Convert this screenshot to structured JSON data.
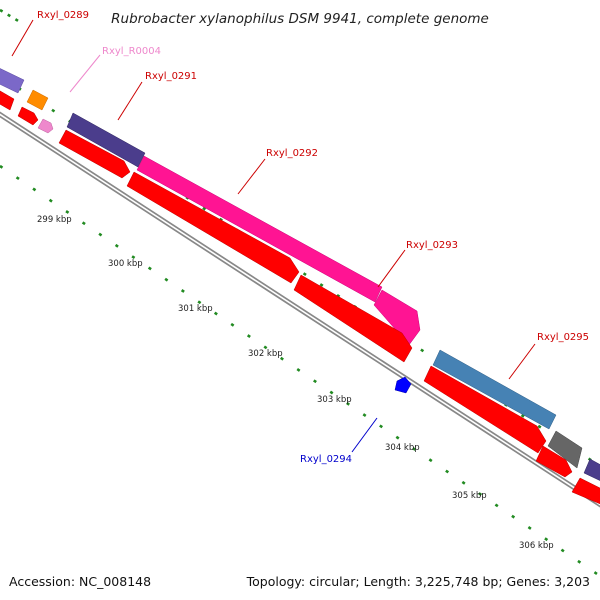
{
  "title": "Rubrobacter xylanophilus DSM 9941, complete genome",
  "footer": {
    "accession": "Accession: NC_008148",
    "summary": "Topology: circular; Length: 3,225,748 bp; Genes: 3,203"
  },
  "colors": {
    "cds_red": "#ff0000",
    "purple": "#7b68c8",
    "orange": "#ff8c00",
    "pink": "#ee88cc",
    "dark_purple": "#4b3d8c",
    "magenta": "#ff1493",
    "steelblue": "#4682b4",
    "gray": "#666666",
    "blue": "#0000ff",
    "tick_green": "#228b22",
    "backbone": "#999999"
  },
  "gene_labels": [
    {
      "id": "Rxyl_0289",
      "text": "Rxyl_0289",
      "color": "#cc0000"
    },
    {
      "id": "Rxyl_R0004",
      "text": "Rxyl_R0004",
      "color": "#ee88cc"
    },
    {
      "id": "Rxyl_0291",
      "text": "Rxyl_0291",
      "color": "#cc0000"
    },
    {
      "id": "Rxyl_0292",
      "text": "Rxyl_0292",
      "color": "#cc0000"
    },
    {
      "id": "Rxyl_0293",
      "text": "Rxyl_0293",
      "color": "#cc0000"
    },
    {
      "id": "Rxyl_0294",
      "text": "Rxyl_0294",
      "color": "#0000cc"
    },
    {
      "id": "Rxyl_0295",
      "text": "Rxyl_0295",
      "color": "#cc0000"
    }
  ],
  "kbp_labels": [
    "299 kbp",
    "300 kbp",
    "301 kbp",
    "302 kbp",
    "303 kbp",
    "304 kbp",
    "305 kbp",
    "306 kbp"
  ]
}
